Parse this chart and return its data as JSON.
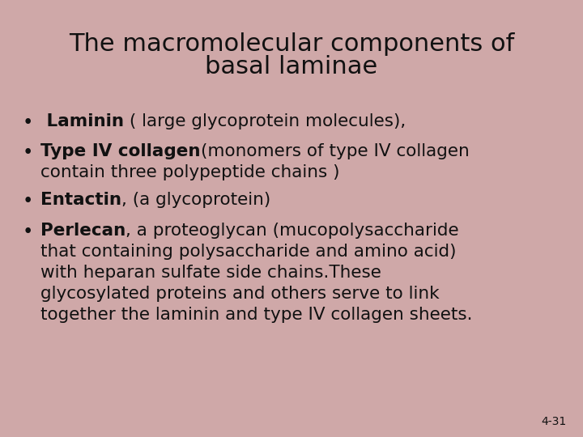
{
  "title_line1": "The macromolecular components of",
  "title_line2": "basal laminae",
  "background_color": "#cfa8a8",
  "title_color": "#111111",
  "text_color": "#111111",
  "title_fontsize": 22,
  "body_fontsize": 15.5,
  "slide_number": "4-31",
  "bullet_char": "•",
  "bullet1_bold": " Laminin",
  "bullet1_normal": " ( large glycoprotein molecules),",
  "bullet2_bold": "Type IV collagen",
  "bullet2_normal": "(monomers of type IV collagen",
  "bullet2_cont": "contain three polypeptide chains )",
  "bullet3_bold": "Entactin",
  "bullet3_normal": ", (a glycoprotein)",
  "bullet4_bold": "Perlecan",
  "bullet4_normal": ", a proteoglycan (mucopolysaccharide",
  "bullet4_cont1": "that containing polysaccharide and amino acid)",
  "bullet4_cont2": "with heparan sulfate side chains.These",
  "bullet4_cont3": "glycosylated proteins and others serve to link",
  "bullet4_cont4": "together the laminin and type IV collagen sheets.",
  "slide_num_fontsize": 10
}
